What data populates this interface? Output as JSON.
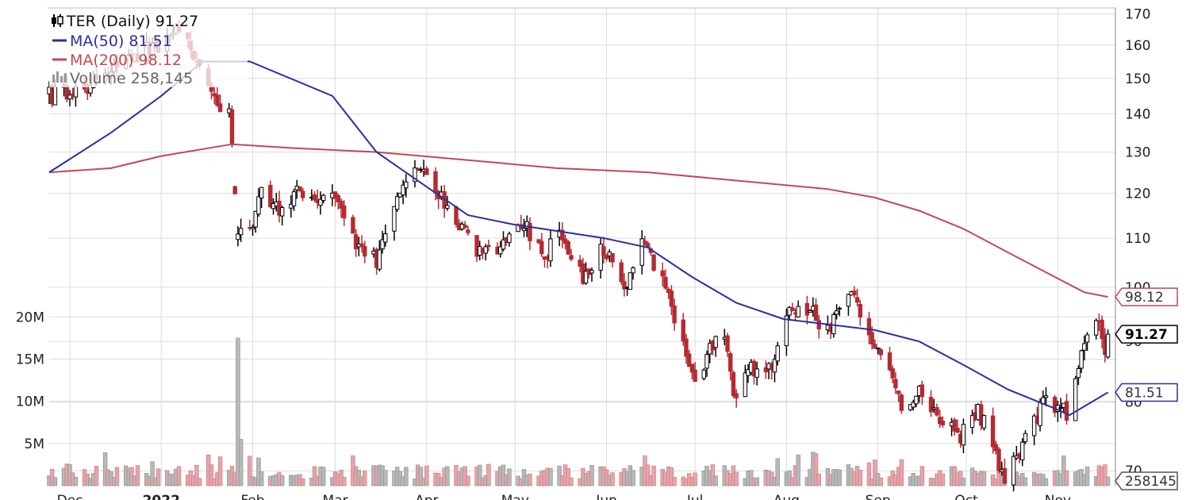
{
  "colors": {
    "up": "#000000",
    "down": "#b52a32",
    "ma50": "#2b2fa0",
    "ma200": "#c04a52",
    "vol_up": "#b8b8b8",
    "vol_down": "#e3a6aa",
    "grid": "#dcdcdc"
  },
  "chart_data": {
    "type": "candlestick",
    "symbol": "TER",
    "legend": {
      "title": "TER (Daily) 91.27",
      "ma50": "MA(50) 81.51",
      "ma200": "MA(200) 98.12",
      "volume": "Volume 258,145"
    },
    "price_axis": {
      "scale": "log",
      "range": [
        68,
        172
      ],
      "ticks": [
        {
          "v": 170,
          "label": "170"
        },
        {
          "v": 160,
          "label": "160"
        },
        {
          "v": 150,
          "label": "150"
        },
        {
          "v": 140,
          "label": "140"
        },
        {
          "v": 130,
          "label": "130"
        },
        {
          "v": 120,
          "label": "120"
        },
        {
          "v": 110,
          "label": "110"
        },
        {
          "v": 100,
          "label": "100"
        },
        {
          "v": 90,
          "label": "90"
        },
        {
          "v": 80,
          "label": "80"
        },
        {
          "v": 70,
          "label": "70"
        }
      ]
    },
    "volume_axis": {
      "range": [
        0,
        22
      ],
      "unit": "M",
      "ticks": [
        {
          "v": 20,
          "label": "20M"
        },
        {
          "v": 15,
          "label": "15M"
        },
        {
          "v": 10,
          "label": "10M"
        },
        {
          "v": 5,
          "label": "5M"
        }
      ]
    },
    "time_axis": {
      "range": [
        "2021-11-24",
        "2022-11-20"
      ],
      "ticks": [
        {
          "date": "2021-12-01",
          "label": "Dec",
          "bold": false
        },
        {
          "date": "2022-01-01",
          "label": "2022",
          "bold": true
        },
        {
          "date": "2022-02-01",
          "label": "Feb",
          "bold": false
        },
        {
          "date": "2022-03-01",
          "label": "Mar",
          "bold": false
        },
        {
          "date": "2022-04-01",
          "label": "Apr",
          "bold": false
        },
        {
          "date": "2022-05-01",
          "label": "May",
          "bold": false
        },
        {
          "date": "2022-06-01",
          "label": "Jun",
          "bold": false
        },
        {
          "date": "2022-07-01",
          "label": "Jul",
          "bold": false
        },
        {
          "date": "2022-08-01",
          "label": "Aug",
          "bold": false
        },
        {
          "date": "2022-09-01",
          "label": "Sep",
          "bold": false
        },
        {
          "date": "2022-10-01",
          "label": "Oct",
          "bold": false
        },
        {
          "date": "2022-11-01",
          "label": "Nov",
          "bold": false
        }
      ]
    },
    "price_keypoints": [
      [
        "2021-11-24",
        145
      ],
      [
        "2021-12-03",
        146
      ],
      [
        "2022-01-03",
        162
      ],
      [
        "2022-01-06",
        165
      ],
      [
        "2022-01-14",
        155
      ],
      [
        "2022-01-19",
        145
      ],
      [
        "2022-01-21",
        140
      ],
      [
        "2022-01-24",
        143
      ],
      [
        "2022-01-27",
        110
      ],
      [
        "2022-02-01",
        114
      ],
      [
        "2022-02-04",
        121
      ],
      [
        "2022-02-10",
        116
      ],
      [
        "2022-02-16",
        121
      ],
      [
        "2022-02-22",
        117
      ],
      [
        "2022-03-01",
        120
      ],
      [
        "2022-03-08",
        108
      ],
      [
        "2022-03-15",
        105
      ],
      [
        "2022-03-22",
        118
      ],
      [
        "2022-03-29",
        125
      ],
      [
        "2022-04-04",
        121
      ],
      [
        "2022-04-12",
        113
      ],
      [
        "2022-04-19",
        107
      ],
      [
        "2022-04-26",
        108
      ],
      [
        "2022-05-03",
        114
      ],
      [
        "2022-05-10",
        106
      ],
      [
        "2022-05-17",
        111
      ],
      [
        "2022-05-24",
        102
      ],
      [
        "2022-05-31",
        108
      ],
      [
        "2022-06-07",
        100
      ],
      [
        "2022-06-13",
        108
      ],
      [
        "2022-06-17",
        105
      ],
      [
        "2022-06-22",
        98
      ],
      [
        "2022-06-28",
        87
      ],
      [
        "2022-07-01",
        84
      ],
      [
        "2022-07-07",
        89
      ],
      [
        "2022-07-11",
        91
      ],
      [
        "2022-07-14",
        80
      ],
      [
        "2022-07-20",
        85
      ],
      [
        "2022-07-27",
        86
      ],
      [
        "2022-08-01",
        95
      ],
      [
        "2022-08-08",
        96
      ],
      [
        "2022-08-15",
        92
      ],
      [
        "2022-08-22",
        99
      ],
      [
        "2022-08-26",
        95
      ],
      [
        "2022-08-31",
        88
      ],
      [
        "2022-09-05",
        85
      ],
      [
        "2022-09-09",
        79
      ],
      [
        "2022-09-15",
        82
      ],
      [
        "2022-09-22",
        78
      ],
      [
        "2022-09-29",
        75
      ],
      [
        "2022-10-05",
        79
      ],
      [
        "2022-10-10",
        73
      ],
      [
        "2022-10-14",
        69
      ],
      [
        "2022-10-19",
        72
      ],
      [
        "2022-10-24",
        77
      ],
      [
        "2022-10-28",
        81
      ],
      [
        "2022-11-04",
        78
      ],
      [
        "2022-11-07",
        83
      ],
      [
        "2022-11-11",
        92
      ],
      [
        "2022-11-15",
        94
      ],
      [
        "2022-11-17",
        89
      ],
      [
        "2022-11-18",
        91.27
      ]
    ],
    "ma50": [
      [
        "2021-11-24",
        125
      ],
      [
        "2021-12-15",
        135
      ],
      [
        "2022-01-01",
        145
      ],
      [
        "2022-01-15",
        155
      ],
      [
        "2022-01-31",
        155
      ],
      [
        "2022-02-28",
        145
      ],
      [
        "2022-03-15",
        130
      ],
      [
        "2022-03-31",
        122
      ],
      [
        "2022-04-15",
        115
      ],
      [
        "2022-04-30",
        113
      ],
      [
        "2022-05-31",
        110
      ],
      [
        "2022-06-15",
        108
      ],
      [
        "2022-06-30",
        102
      ],
      [
        "2022-07-15",
        97
      ],
      [
        "2022-07-31",
        94
      ],
      [
        "2022-08-31",
        92
      ],
      [
        "2022-09-15",
        90
      ],
      [
        "2022-09-30",
        86
      ],
      [
        "2022-10-15",
        82
      ],
      [
        "2022-10-31",
        79
      ],
      [
        "2022-11-05",
        78
      ],
      [
        "2022-11-18",
        81.51
      ]
    ],
    "ma200": [
      [
        "2021-11-24",
        125
      ],
      [
        "2021-12-15",
        126
      ],
      [
        "2022-01-01",
        129
      ],
      [
        "2022-01-25",
        132
      ],
      [
        "2022-02-15",
        131
      ],
      [
        "2022-03-15",
        130
      ],
      [
        "2022-04-15",
        128
      ],
      [
        "2022-05-15",
        126
      ],
      [
        "2022-06-15",
        125
      ],
      [
        "2022-07-15",
        123
      ],
      [
        "2022-08-15",
        121
      ],
      [
        "2022-08-31",
        119
      ],
      [
        "2022-09-15",
        116
      ],
      [
        "2022-09-30",
        112
      ],
      [
        "2022-10-15",
        107
      ],
      [
        "2022-10-31",
        102
      ],
      [
        "2022-11-10",
        99
      ],
      [
        "2022-11-18",
        98.12
      ]
    ],
    "volume_spikes": [
      {
        "date": "2022-01-27",
        "value": 17.5
      },
      {
        "date": "2022-01-28",
        "value": 5.5
      },
      {
        "date": "2022-01-31",
        "value": 3.5
      }
    ],
    "volume_typical_range": [
      0.8,
      2.5
    ],
    "last": {
      "price": 91.27,
      "price_label": "91.27",
      "ma50": 81.51,
      "ma50_label": "81.51",
      "ma200": 98.12,
      "ma200_label": "98.12",
      "volume_label": "258145"
    }
  }
}
